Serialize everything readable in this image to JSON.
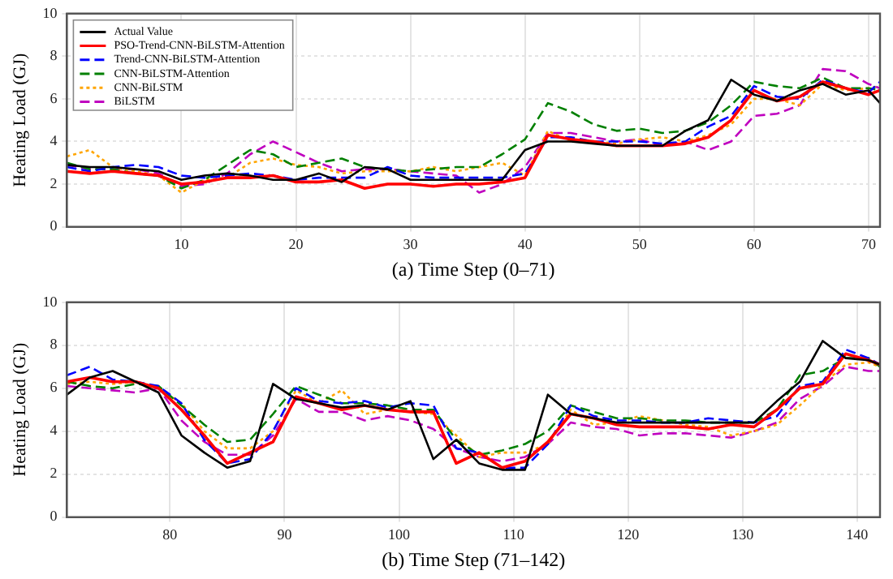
{
  "chart_data": [
    {
      "type": "line",
      "xlabel": "(a) Time Step (0–71)",
      "ylabel": "Heating Load (GJ)",
      "xlim": [
        0,
        71
      ],
      "xticks": [
        10,
        20,
        30,
        40,
        50,
        60,
        70
      ],
      "ylim": [
        0,
        10
      ],
      "yticks": [
        0,
        2,
        4,
        6,
        8,
        10
      ],
      "grid": true,
      "legend": "top left",
      "marker": "none",
      "x": [
        0,
        2,
        4,
        6,
        8,
        10,
        12,
        14,
        16,
        18,
        20,
        22,
        24,
        26,
        28,
        30,
        32,
        34,
        36,
        38,
        40,
        42,
        44,
        46,
        48,
        50,
        52,
        54,
        56,
        58,
        60,
        62,
        64,
        66,
        68,
        70,
        71
      ],
      "series": [
        {
          "name": "Actual Value",
          "color": "#000000",
          "line_style": "solid",
          "values": [
            2.9,
            2.8,
            2.8,
            2.7,
            2.6,
            2.2,
            2.4,
            2.5,
            2.4,
            2.2,
            2.2,
            2.5,
            2.1,
            2.8,
            2.7,
            2.2,
            2.2,
            2.2,
            2.2,
            2.2,
            3.6,
            4.0,
            4.0,
            3.9,
            3.8,
            3.8,
            3.8,
            4.5,
            5.0,
            6.9,
            6.2,
            5.9,
            6.4,
            6.7,
            6.2,
            6.4,
            5.8
          ]
        },
        {
          "name": "PSO-Trend-CNN-BiLSTM-Attention",
          "color": "#ff0000",
          "line_style": "solid",
          "values": [
            2.6,
            2.5,
            2.6,
            2.5,
            2.4,
            2.0,
            2.1,
            2.3,
            2.3,
            2.4,
            2.1,
            2.1,
            2.2,
            1.8,
            2.0,
            2.0,
            1.9,
            2.0,
            2.0,
            2.1,
            2.3,
            4.3,
            4.1,
            4.0,
            3.8,
            3.8,
            3.8,
            3.9,
            4.2,
            5.0,
            6.4,
            5.9,
            6.1,
            6.8,
            6.5,
            6.2,
            6.4
          ]
        },
        {
          "name": "Trend-CNN-BiLSTM-Attention",
          "color": "#0000ff",
          "line_style": "dashed",
          "values": [
            2.8,
            2.6,
            2.8,
            2.9,
            2.8,
            2.4,
            2.3,
            2.4,
            2.5,
            2.4,
            2.2,
            2.3,
            2.3,
            2.3,
            2.8,
            2.4,
            2.3,
            2.3,
            2.3,
            2.3,
            2.5,
            4.2,
            4.2,
            4.0,
            4.0,
            4.0,
            3.9,
            4.0,
            4.7,
            5.2,
            6.6,
            6.1,
            6.0,
            6.9,
            6.5,
            6.3,
            6.8
          ]
        },
        {
          "name": "CNN-BiLSTM-Attention",
          "color": "#008000",
          "line_style": "dashed",
          "values": [
            3.0,
            2.7,
            2.7,
            2.5,
            2.4,
            1.8,
            2.2,
            2.9,
            3.6,
            3.4,
            2.8,
            3.0,
            3.2,
            2.8,
            2.7,
            2.6,
            2.7,
            2.8,
            2.8,
            3.4,
            4.1,
            5.8,
            5.4,
            4.8,
            4.5,
            4.6,
            4.4,
            4.5,
            4.9,
            5.7,
            6.8,
            6.6,
            6.5,
            7.0,
            6.5,
            6.5,
            6.4
          ]
        },
        {
          "name": "CNN-BiLSTM",
          "color": "#ffa500",
          "line_style": "dotted",
          "values": [
            3.3,
            3.6,
            2.8,
            2.6,
            2.4,
            1.6,
            2.2,
            2.3,
            3.0,
            3.2,
            2.9,
            2.8,
            2.5,
            2.6,
            2.6,
            2.6,
            2.8,
            2.6,
            2.8,
            3.0,
            2.4,
            4.5,
            4.0,
            4.0,
            3.9,
            4.1,
            4.2,
            4.0,
            4.3,
            4.8,
            6.0,
            6.0,
            5.7,
            6.7,
            6.4,
            6.5,
            6.6
          ]
        },
        {
          "name": "BiLSTM",
          "color": "#bf00bf",
          "line_style": "dashed",
          "values": [
            2.9,
            2.7,
            2.7,
            2.7,
            2.5,
            1.9,
            2.0,
            2.5,
            3.4,
            4.0,
            3.5,
            3.0,
            2.6,
            2.7,
            2.7,
            2.6,
            2.5,
            2.4,
            1.6,
            2.0,
            2.8,
            4.4,
            4.4,
            4.2,
            4.0,
            4.1,
            3.8,
            4.0,
            3.6,
            4.0,
            5.2,
            5.3,
            5.7,
            7.4,
            7.3,
            6.7,
            6.5
          ]
        }
      ]
    },
    {
      "type": "line",
      "xlabel": "(b) Time Step (71–142)",
      "ylabel": "Heating Load (GJ)",
      "xlim": [
        71,
        142
      ],
      "xticks": [
        80,
        90,
        100,
        110,
        120,
        130,
        140
      ],
      "ylim": [
        0,
        10
      ],
      "yticks": [
        0,
        2,
        4,
        6,
        8,
        10
      ],
      "grid": true,
      "marker": "none",
      "x": [
        71,
        73,
        75,
        77,
        79,
        81,
        83,
        85,
        87,
        89,
        91,
        93,
        95,
        97,
        99,
        101,
        103,
        105,
        107,
        109,
        111,
        113,
        115,
        117,
        119,
        121,
        123,
        125,
        127,
        129,
        131,
        133,
        135,
        137,
        139,
        141,
        142
      ],
      "series": [
        {
          "color": "#000000",
          "line_style": "solid",
          "values": [
            5.7,
            6.5,
            6.8,
            6.3,
            5.8,
            3.8,
            3.0,
            2.3,
            2.6,
            6.2,
            5.5,
            5.3,
            5.1,
            5.2,
            5.0,
            5.4,
            2.7,
            3.6,
            2.5,
            2.2,
            2.2,
            5.7,
            4.8,
            4.6,
            4.4,
            4.4,
            4.4,
            4.4,
            4.4,
            4.4,
            4.4,
            5.4,
            6.3,
            8.2,
            7.4,
            7.3,
            7.1
          ]
        },
        {
          "color": "#ff0000",
          "line_style": "solid",
          "values": [
            6.3,
            6.5,
            6.3,
            6.3,
            6.0,
            5.0,
            3.8,
            2.5,
            3.0,
            3.5,
            5.6,
            5.3,
            5.0,
            5.2,
            5.0,
            4.9,
            4.9,
            2.5,
            3.0,
            2.3,
            2.6,
            3.5,
            4.8,
            4.6,
            4.3,
            4.2,
            4.2,
            4.2,
            4.1,
            4.3,
            4.2,
            5.0,
            6.0,
            6.2,
            7.6,
            7.3,
            7.1
          ]
        },
        {
          "color": "#0000ff",
          "line_style": "dashed",
          "values": [
            6.6,
            7.0,
            6.4,
            6.3,
            6.1,
            5.3,
            3.6,
            2.5,
            2.7,
            4.0,
            6.0,
            5.4,
            5.3,
            5.4,
            5.1,
            5.3,
            5.2,
            3.2,
            3.0,
            2.3,
            2.3,
            3.4,
            5.2,
            4.7,
            4.5,
            4.5,
            4.4,
            4.4,
            4.6,
            4.5,
            4.4,
            4.7,
            6.1,
            6.3,
            7.8,
            7.4,
            7.1
          ]
        },
        {
          "color": "#008000",
          "line_style": "dashed",
          "values": [
            6.3,
            6.1,
            6.0,
            6.2,
            6.1,
            5.2,
            4.3,
            3.5,
            3.6,
            4.8,
            6.1,
            5.7,
            5.3,
            5.3,
            5.2,
            5.0,
            5.0,
            3.6,
            2.9,
            3.1,
            3.4,
            4.0,
            5.2,
            4.9,
            4.6,
            4.6,
            4.5,
            4.5,
            4.4,
            4.4,
            4.4,
            5.0,
            6.6,
            6.8,
            7.4,
            7.4,
            7.0
          ]
        },
        {
          "color": "#ffa500",
          "line_style": "dotted",
          "values": [
            6.2,
            6.3,
            6.2,
            6.3,
            6.0,
            5.3,
            4.0,
            3.2,
            3.2,
            4.0,
            5.9,
            5.3,
            5.9,
            4.8,
            5.0,
            4.9,
            4.8,
            3.8,
            2.8,
            3.0,
            3.0,
            3.4,
            5.0,
            4.3,
            4.4,
            4.7,
            4.5,
            4.3,
            4.2,
            3.8,
            4.0,
            4.3,
            5.2,
            6.2,
            7.1,
            7.2,
            7.0
          ]
        },
        {
          "color": "#bf00bf",
          "line_style": "dashed",
          "values": [
            6.1,
            6.0,
            5.9,
            5.8,
            6.0,
            4.5,
            3.5,
            2.9,
            2.9,
            3.8,
            5.5,
            4.9,
            4.9,
            4.5,
            4.7,
            4.5,
            4.1,
            3.2,
            2.8,
            2.6,
            2.8,
            3.4,
            4.4,
            4.2,
            4.1,
            3.8,
            3.9,
            3.9,
            3.8,
            3.7,
            4.0,
            4.4,
            5.5,
            6.1,
            7.0,
            6.8,
            6.8
          ]
        }
      ]
    }
  ]
}
